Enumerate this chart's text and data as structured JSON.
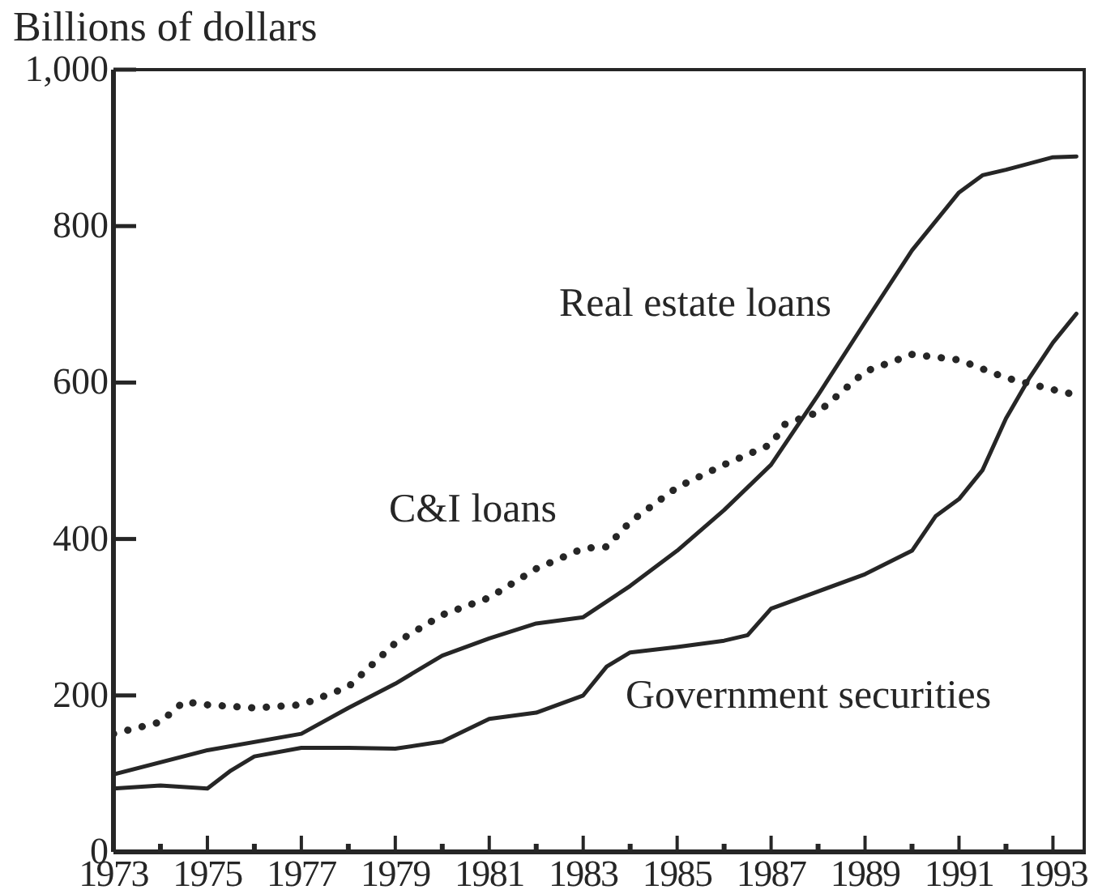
{
  "chart_data": {
    "type": "line",
    "ylabel": "Billions of dollars",
    "xlim": [
      1973,
      1993.7
    ],
    "ylim": [
      0,
      1000
    ],
    "xticks": [
      1973,
      {
        "value": 1974,
        "label": null
      },
      1975,
      {
        "value": 1976,
        "label": null
      },
      1977,
      {
        "value": 1978,
        "label": null
      },
      1979,
      {
        "value": 1980,
        "label": null
      },
      1981,
      {
        "value": 1982,
        "label": null
      },
      1983,
      {
        "value": 1984,
        "label": null
      },
      1985,
      {
        "value": 1986,
        "label": null
      },
      1987,
      {
        "value": 1988,
        "label": null
      },
      1989,
      {
        "value": 1990,
        "label": null
      },
      1991,
      {
        "value": 1992,
        "label": null
      },
      1993
    ],
    "yticks": [
      0,
      200,
      400,
      600,
      800,
      {
        "value": 1000,
        "label": "1,000"
      }
    ],
    "marker": "none",
    "series": [
      {
        "name": "Real estate loans",
        "color": "#262626",
        "line_style": "solid",
        "x": [
          1973,
          1975,
          1977,
          1978,
          1979,
          1980,
          1981,
          1982,
          1983,
          1984,
          1985,
          1986,
          1987,
          1988,
          1989,
          1990,
          1991,
          1991.5,
          1992,
          1993,
          1993.5
        ],
        "values": [
          99,
          130,
          151,
          184,
          215,
          251,
          273,
          292,
          300,
          340,
          385,
          437,
          495,
          584,
          677,
          769,
          843,
          865,
          872,
          888,
          889
        ]
      },
      {
        "name": "C&I loans",
        "color": "#262626",
        "line_style": "dotted",
        "x": [
          1973,
          1974,
          1974.5,
          1975,
          1976,
          1977,
          1978,
          1979,
          1980,
          1981,
          1982,
          1983,
          1983.5,
          1984,
          1985,
          1986,
          1987,
          1987.3,
          1988,
          1989,
          1990,
          1991,
          1992,
          1993,
          1993.5
        ],
        "values": [
          151,
          166,
          192,
          188,
          184,
          188,
          211,
          267,
          303,
          325,
          362,
          388,
          390,
          422,
          466,
          495,
          521,
          547,
          562,
          614,
          636,
          629,
          606,
          591,
          584
        ]
      },
      {
        "name": "Government securities",
        "color": "#262626",
        "line_style": "solid",
        "x": [
          1973,
          1974,
          1975,
          1975.5,
          1976,
          1977,
          1978,
          1979,
          1980,
          1981,
          1982,
          1983,
          1983.5,
          1984,
          1985,
          1986,
          1986.5,
          1987,
          1988,
          1989,
          1990,
          1990.5,
          1991,
          1991.5,
          1992,
          1992.5,
          1993,
          1993.5
        ],
        "values": [
          81,
          85,
          81,
          104,
          122,
          133,
          133,
          132,
          141,
          170,
          178,
          200,
          237,
          255,
          262,
          270,
          277,
          311,
          333,
          355,
          385,
          429,
          451,
          488,
          554,
          606,
          651,
          688
        ]
      }
    ]
  }
}
